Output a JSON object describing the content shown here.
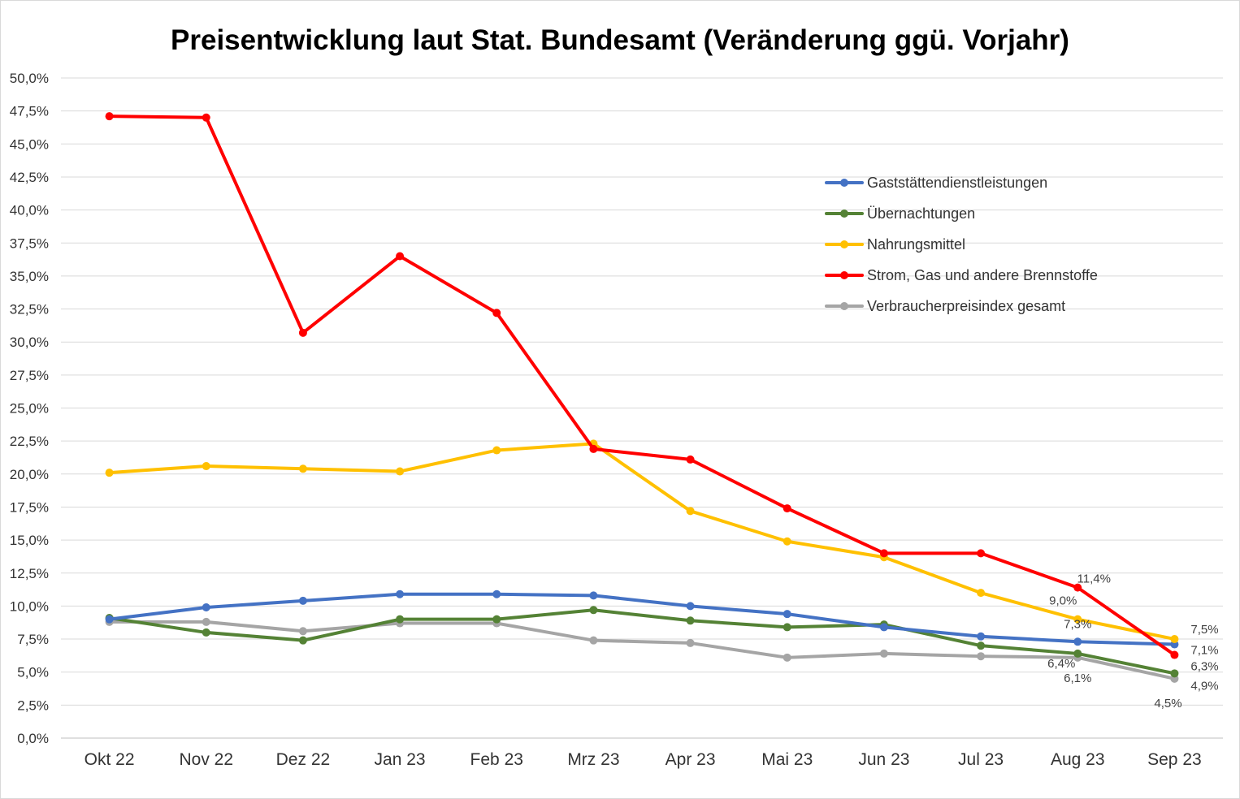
{
  "chart_data": {
    "type": "line",
    "title": "Preisentwicklung laut Stat. Bundesamt (Veränderung ggü. Vorjahr)",
    "xlabel": "",
    "ylabel": "",
    "categories": [
      "Okt 22",
      "Nov 22",
      "Dez 22",
      "Jan 23",
      "Feb 23",
      "Mrz 23",
      "Apr 23",
      "Mai 23",
      "Jun 23",
      "Jul 23",
      "Aug 23",
      "Sep 23"
    ],
    "ylim": [
      0,
      50
    ],
    "yticks": [
      "0,0%",
      "2,5%",
      "5,0%",
      "7,5%",
      "10,0%",
      "12,5%",
      "15,0%",
      "17,5%",
      "20,0%",
      "22,5%",
      "25,0%",
      "27,5%",
      "30,0%",
      "32,5%",
      "35,0%",
      "37,5%",
      "40,0%",
      "42,5%",
      "45,0%",
      "47,5%",
      "50,0%"
    ],
    "grid": true,
    "legend_position": "right",
    "series": [
      {
        "name": "Gaststättendienstleistungen",
        "color": "#4472c4",
        "values": [
          9.0,
          9.9,
          10.4,
          10.9,
          10.9,
          10.8,
          10.0,
          9.4,
          8.4,
          7.7,
          7.3,
          7.1
        ],
        "labels": {
          "Aug 23": "7,3%",
          "Sep 23": "7,1%"
        }
      },
      {
        "name": "Übernachtungen",
        "color": "#548235",
        "values": [
          9.1,
          8.0,
          7.4,
          9.0,
          9.0,
          9.7,
          8.9,
          8.4,
          8.6,
          7.0,
          6.4,
          4.9
        ],
        "labels": {
          "Aug 23": "6,4%",
          "Sep 23": "4,9%"
        }
      },
      {
        "name": "Nahrungsmittel",
        "color": "#ffc000",
        "values": [
          20.1,
          20.6,
          20.4,
          20.2,
          21.8,
          22.3,
          17.2,
          14.9,
          13.7,
          11.0,
          9.0,
          7.5
        ],
        "labels": {
          "Aug 23": "9,0%",
          "Sep 23": "7,5%"
        }
      },
      {
        "name": "Strom, Gas und andere Brennstoffe",
        "color": "#ff0000",
        "values": [
          47.1,
          47.0,
          30.7,
          36.5,
          32.2,
          21.9,
          21.1,
          17.4,
          14.0,
          14.0,
          11.4,
          6.3
        ],
        "labels": {
          "Aug 23": "11,4%",
          "Sep 23": "6,3%"
        }
      },
      {
        "name": "Verbraucherpreisindex gesamt",
        "color": "#a5a5a5",
        "values": [
          8.8,
          8.8,
          8.1,
          8.7,
          8.7,
          7.4,
          7.2,
          6.1,
          6.4,
          6.2,
          6.1,
          4.5
        ],
        "labels": {
          "Aug 23": "6,1%",
          "Sep 23": "4,5%"
        }
      }
    ]
  }
}
